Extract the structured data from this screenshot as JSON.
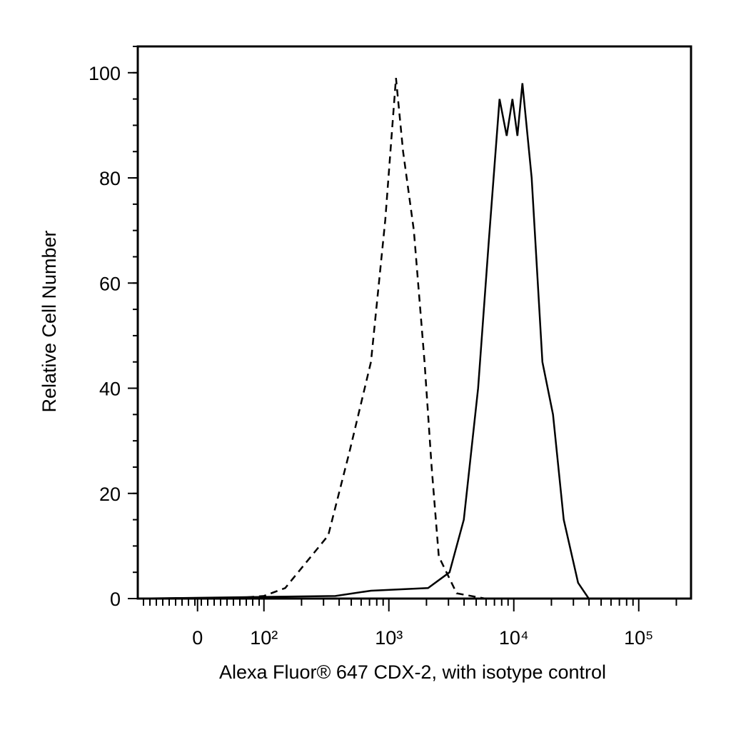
{
  "chart_data": {
    "type": "line",
    "x_label": "Alexa Fluor® 647 CDX-2, with isotype control",
    "y_label": "Relative Cell Number",
    "xscale": "biexponential",
    "xlim": [
      -90,
      262143
    ],
    "xticks": [
      0,
      {
        "value": 100,
        "label": "10²"
      },
      {
        "value": 1000,
        "label": "10³"
      },
      {
        "value": 10000,
        "label": "10⁴"
      },
      {
        "value": 100000,
        "label": "10⁵"
      }
    ],
    "ylim": [
      0,
      105
    ],
    "yticks": [
      0,
      20,
      40,
      60,
      80,
      100
    ],
    "series": [
      {
        "color": "#000000",
        "line_style": "dashed",
        "x": [
          -90,
          50,
          100,
          148,
          220,
          327,
          485,
          719,
          936,
          1140,
          1300,
          1585,
          1930,
          2200,
          2510,
          3490,
          5900,
          262143
        ],
        "values": [
          0,
          0,
          0.5,
          2,
          7,
          12,
          28,
          45,
          72,
          99,
          85,
          70,
          45,
          25,
          8,
          1,
          0,
          0
        ]
      },
      {
        "color": "#000000",
        "line_style": "solid",
        "x": [
          -90,
          373,
          719,
          2060,
          3060,
          3980,
          5180,
          6310,
          7690,
          8770,
          9750,
          10690,
          11720,
          13900,
          16940,
          20600,
          25100,
          32700,
          39800,
          262143
        ],
        "values": [
          0,
          0.5,
          1.5,
          2,
          5,
          15,
          40,
          68,
          95,
          88,
          95,
          88,
          98,
          80,
          45,
          35,
          15,
          3,
          0,
          0
        ]
      }
    ]
  }
}
